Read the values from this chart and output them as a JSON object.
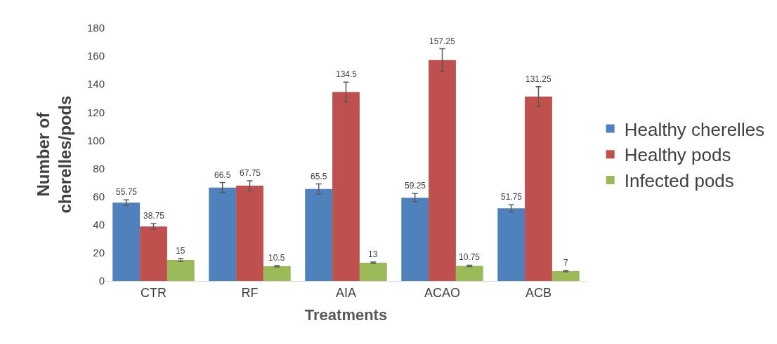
{
  "chart_data": {
    "type": "bar",
    "xlabel": "Treatments",
    "ylabel": "Number of cherelles/pods",
    "categories": [
      "CTR",
      "RF",
      "AIA",
      "ACAO",
      "ACB"
    ],
    "series": [
      {
        "name": "Healthy cherelles",
        "color": "#4f81bd",
        "values": [
          55.75,
          66.5,
          65.5,
          59.25,
          51.75
        ],
        "errors": [
          2,
          3.5,
          3.5,
          3,
          2.5
        ]
      },
      {
        "name": "Healthy pods",
        "color": "#c0504d",
        "values": [
          38.75,
          67.75,
          134.5,
          157.25,
          131.25
        ],
        "errors": [
          2,
          3.5,
          7,
          8,
          7
        ]
      },
      {
        "name": "Infected pods",
        "color": "#9bbb59",
        "values": [
          15,
          10.5,
          13,
          10.75,
          7
        ],
        "errors": [
          1,
          0.5,
          0.5,
          0.5,
          0.5
        ]
      }
    ],
    "ylim": [
      0,
      180
    ],
    "yticks": [
      0,
      20,
      40,
      60,
      80,
      100,
      120,
      140,
      160,
      180
    ],
    "data_labels": true,
    "legend": "right"
  }
}
